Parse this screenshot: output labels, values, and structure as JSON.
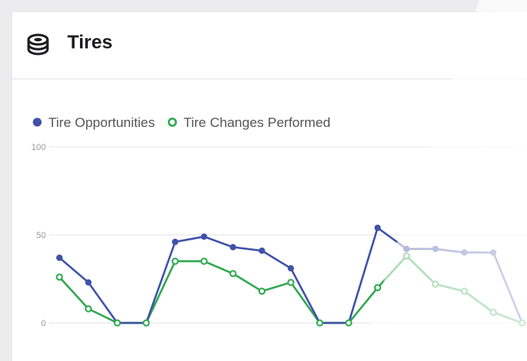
{
  "card": {
    "title": "Tires",
    "icon": "tire-icon"
  },
  "chart_data": {
    "type": "line",
    "x": [
      1,
      2,
      3,
      4,
      5,
      6,
      7,
      8,
      9,
      10,
      11,
      12,
      13,
      14,
      15,
      16,
      17
    ],
    "series": [
      {
        "name": "Tire Opportunities",
        "color": "#3f51a8",
        "marker": "filled",
        "values": [
          37,
          23,
          0,
          0,
          46,
          49,
          43,
          41,
          31,
          0,
          0,
          54,
          42,
          42,
          40,
          40,
          0
        ]
      },
      {
        "name": "Tire Changes Performed",
        "color": "#2fa84f",
        "marker": "hollow",
        "values": [
          26,
          8,
          0,
          0,
          35,
          35,
          28,
          18,
          23,
          0,
          0,
          20,
          38,
          22,
          18,
          6,
          0
        ]
      }
    ],
    "yticks": [
      "0",
      "50",
      "100"
    ],
    "ylim": [
      0,
      100
    ],
    "legend": "top-left",
    "grid": true
  }
}
